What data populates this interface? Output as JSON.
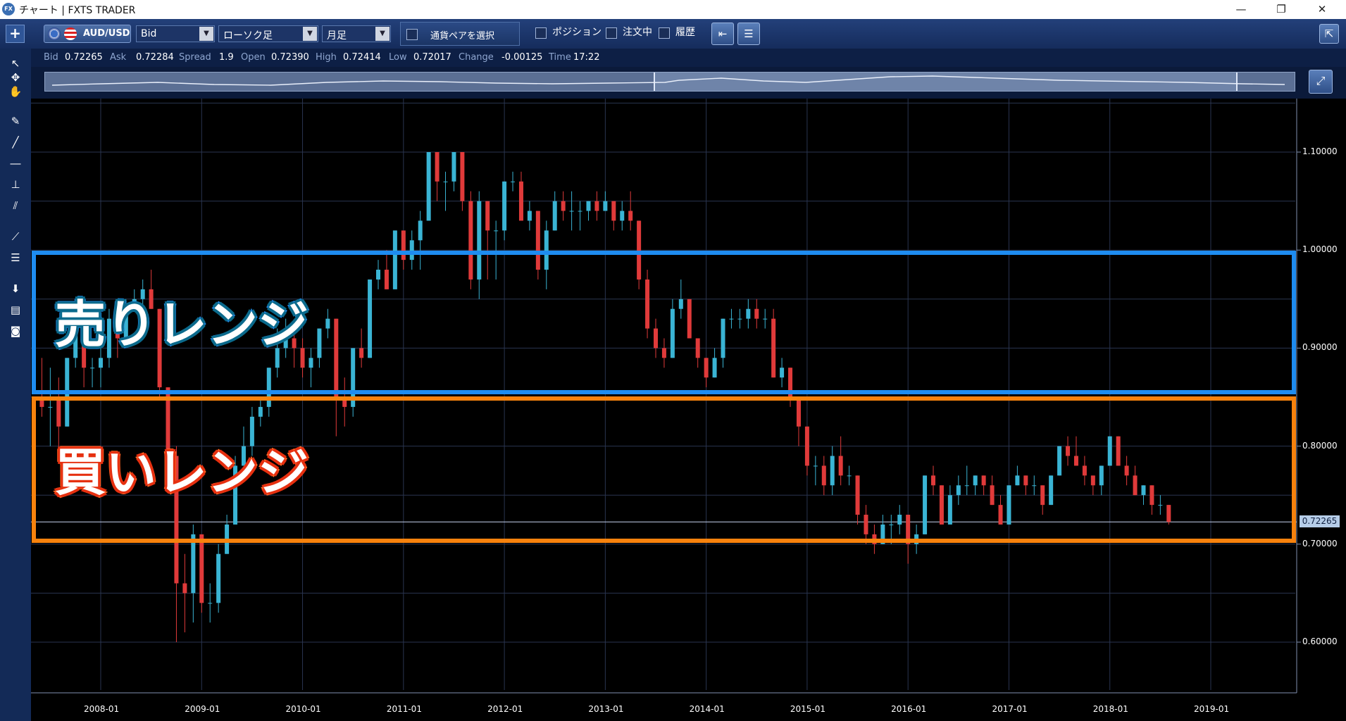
{
  "window": {
    "title": "チャート | FXTS TRADER",
    "app_icon_text": "FX"
  },
  "toolbar": {
    "plus_label": "+",
    "pair": "AUD/USD",
    "price_type": "Bid",
    "chart_type": "ローソク足",
    "timeframe": "月足",
    "pair_select_label": "通貨ペアを選択",
    "checkboxes": [
      {
        "label": "ポジション",
        "checked": false
      },
      {
        "label": "注文中",
        "checked": false
      },
      {
        "label": "履歴",
        "checked": false
      }
    ]
  },
  "info": {
    "bid_label": "Bid",
    "bid": "0.72265",
    "ask_label": "Ask",
    "ask": "0.72284",
    "spread_label": "Spread",
    "spread": "1.9",
    "open_label": "Open",
    "open": "0.72390",
    "high_label": "High",
    "high": "0.72414",
    "low_label": "Low",
    "low": "0.72017",
    "change_label": "Change",
    "change": "-0.00125",
    "time_label": "Time",
    "time": "17:22"
  },
  "annotations": {
    "sell_range": "売りレンジ",
    "buy_range": "買いレンジ"
  },
  "colors": {
    "up": "#3ab4d4",
    "down": "#e03a3a",
    "sell_box": "#1e8cf0",
    "buy_box": "#f7820d"
  },
  "chart_data": {
    "type": "candlestick",
    "current_price": "0.72265",
    "y_ticks": [
      "1.10000",
      "1.00000",
      "0.90000",
      "0.80000",
      "0.70000",
      "0.60000"
    ],
    "y_values": [
      1.1,
      1.0,
      0.9,
      0.8,
      0.7,
      0.6
    ],
    "ylim": [
      0.55,
      1.15
    ],
    "x_ticks": [
      "2008-01",
      "2009-01",
      "2010-01",
      "2011-01",
      "2012-01",
      "2013-01",
      "2014-01",
      "2015-01",
      "2016-01",
      "2017-01",
      "2018-01",
      "2019-01"
    ],
    "candles": [
      {
        "t": "2007-06",
        "o": 0.85,
        "h": 0.89,
        "l": 0.83,
        "c": 0.84
      },
      {
        "t": "2007-07",
        "o": 0.84,
        "h": 0.88,
        "l": 0.8,
        "c": 0.84
      },
      {
        "t": "2007-08",
        "o": 0.85,
        "h": 0.87,
        "l": 0.79,
        "c": 0.82
      },
      {
        "t": "2007-09",
        "o": 0.82,
        "h": 0.89,
        "l": 0.82,
        "c": 0.89
      },
      {
        "t": "2007-10",
        "o": 0.89,
        "h": 0.93,
        "l": 0.88,
        "c": 0.92
      },
      {
        "t": "2007-11",
        "o": 0.92,
        "h": 0.93,
        "l": 0.86,
        "c": 0.88
      },
      {
        "t": "2007-12",
        "o": 0.88,
        "h": 0.89,
        "l": 0.86,
        "c": 0.88
      },
      {
        "t": "2008-01",
        "o": 0.88,
        "h": 0.9,
        "l": 0.86,
        "c": 0.89
      },
      {
        "t": "2008-02",
        "o": 0.89,
        "h": 0.94,
        "l": 0.88,
        "c": 0.93
      },
      {
        "t": "2008-03",
        "o": 0.93,
        "h": 0.94,
        "l": 0.89,
        "c": 0.91
      },
      {
        "t": "2008-04",
        "o": 0.91,
        "h": 0.95,
        "l": 0.91,
        "c": 0.94
      },
      {
        "t": "2008-05",
        "o": 0.94,
        "h": 0.96,
        "l": 0.94,
        "c": 0.95
      },
      {
        "t": "2008-06",
        "o": 0.95,
        "h": 0.97,
        "l": 0.94,
        "c": 0.96
      },
      {
        "t": "2008-07",
        "o": 0.96,
        "h": 0.98,
        "l": 0.94,
        "c": 0.94
      },
      {
        "t": "2008-08",
        "o": 0.94,
        "h": 0.94,
        "l": 0.85,
        "c": 0.86
      },
      {
        "t": "2008-09",
        "o": 0.86,
        "h": 0.86,
        "l": 0.78,
        "c": 0.79
      },
      {
        "t": "2008-10",
        "o": 0.79,
        "h": 0.8,
        "l": 0.6,
        "c": 0.66
      },
      {
        "t": "2008-11",
        "o": 0.66,
        "h": 0.69,
        "l": 0.61,
        "c": 0.65
      },
      {
        "t": "2008-12",
        "o": 0.65,
        "h": 0.72,
        "l": 0.62,
        "c": 0.71
      },
      {
        "t": "2009-01",
        "o": 0.71,
        "h": 0.71,
        "l": 0.63,
        "c": 0.64
      },
      {
        "t": "2009-02",
        "o": 0.64,
        "h": 0.66,
        "l": 0.62,
        "c": 0.64
      },
      {
        "t": "2009-03",
        "o": 0.64,
        "h": 0.7,
        "l": 0.63,
        "c": 0.69
      },
      {
        "t": "2009-04",
        "o": 0.69,
        "h": 0.73,
        "l": 0.69,
        "c": 0.72
      },
      {
        "t": "2009-05",
        "o": 0.72,
        "h": 0.79,
        "l": 0.72,
        "c": 0.78
      },
      {
        "t": "2009-06",
        "o": 0.78,
        "h": 0.82,
        "l": 0.78,
        "c": 0.8
      },
      {
        "t": "2009-07",
        "o": 0.8,
        "h": 0.84,
        "l": 0.79,
        "c": 0.83
      },
      {
        "t": "2009-08",
        "o": 0.83,
        "h": 0.85,
        "l": 0.82,
        "c": 0.84
      },
      {
        "t": "2009-09",
        "o": 0.84,
        "h": 0.88,
        "l": 0.83,
        "c": 0.88
      },
      {
        "t": "2009-10",
        "o": 0.88,
        "h": 0.92,
        "l": 0.87,
        "c": 0.9
      },
      {
        "t": "2009-11",
        "o": 0.9,
        "h": 0.93,
        "l": 0.89,
        "c": 0.91
      },
      {
        "t": "2009-12",
        "o": 0.91,
        "h": 0.92,
        "l": 0.88,
        "c": 0.9
      },
      {
        "t": "2010-01",
        "o": 0.9,
        "h": 0.91,
        "l": 0.87,
        "c": 0.88
      },
      {
        "t": "2010-02",
        "o": 0.88,
        "h": 0.9,
        "l": 0.86,
        "c": 0.89
      },
      {
        "t": "2010-03",
        "o": 0.89,
        "h": 0.92,
        "l": 0.88,
        "c": 0.92
      },
      {
        "t": "2010-04",
        "o": 0.92,
        "h": 0.94,
        "l": 0.91,
        "c": 0.93
      },
      {
        "t": "2010-05",
        "o": 0.93,
        "h": 0.93,
        "l": 0.81,
        "c": 0.85
      },
      {
        "t": "2010-06",
        "o": 0.85,
        "h": 0.87,
        "l": 0.82,
        "c": 0.84
      },
      {
        "t": "2010-07",
        "o": 0.84,
        "h": 0.9,
        "l": 0.83,
        "c": 0.9
      },
      {
        "t": "2010-08",
        "o": 0.9,
        "h": 0.92,
        "l": 0.88,
        "c": 0.89
      },
      {
        "t": "2010-09",
        "o": 0.89,
        "h": 0.97,
        "l": 0.89,
        "c": 0.97
      },
      {
        "t": "2010-10",
        "o": 0.97,
        "h": 0.99,
        "l": 0.96,
        "c": 0.98
      },
      {
        "t": "2010-11",
        "o": 0.98,
        "h": 1.0,
        "l": 0.96,
        "c": 0.96
      },
      {
        "t": "2010-12",
        "o": 0.96,
        "h": 1.02,
        "l": 0.96,
        "c": 1.02
      },
      {
        "t": "2011-01",
        "o": 1.02,
        "h": 1.02,
        "l": 0.98,
        "c": 0.99
      },
      {
        "t": "2011-02",
        "o": 0.99,
        "h": 1.02,
        "l": 0.98,
        "c": 1.01
      },
      {
        "t": "2011-03",
        "o": 1.01,
        "h": 1.04,
        "l": 0.98,
        "c": 1.03
      },
      {
        "t": "2011-04",
        "o": 1.03,
        "h": 1.1,
        "l": 1.03,
        "c": 1.1
      },
      {
        "t": "2011-05",
        "o": 1.1,
        "h": 1.1,
        "l": 1.05,
        "c": 1.07
      },
      {
        "t": "2011-06",
        "o": 1.07,
        "h": 1.08,
        "l": 1.04,
        "c": 1.07
      },
      {
        "t": "2011-07",
        "o": 1.07,
        "h": 1.1,
        "l": 1.06,
        "c": 1.1
      },
      {
        "t": "2011-08",
        "o": 1.1,
        "h": 1.1,
        "l": 1.04,
        "c": 1.05
      },
      {
        "t": "2011-09",
        "o": 1.05,
        "h": 1.06,
        "l": 0.96,
        "c": 0.97
      },
      {
        "t": "2011-10",
        "o": 0.97,
        "h": 1.06,
        "l": 0.95,
        "c": 1.05
      },
      {
        "t": "2011-11",
        "o": 1.05,
        "h": 1.05,
        "l": 0.97,
        "c": 1.02
      },
      {
        "t": "2011-12",
        "o": 1.02,
        "h": 1.03,
        "l": 0.97,
        "c": 1.02
      },
      {
        "t": "2012-01",
        "o": 1.02,
        "h": 1.07,
        "l": 1.01,
        "c": 1.07
      },
      {
        "t": "2012-02",
        "o": 1.07,
        "h": 1.08,
        "l": 1.06,
        "c": 1.07
      },
      {
        "t": "2012-03",
        "o": 1.07,
        "h": 1.08,
        "l": 1.03,
        "c": 1.03
      },
      {
        "t": "2012-04",
        "o": 1.03,
        "h": 1.05,
        "l": 1.02,
        "c": 1.04
      },
      {
        "t": "2012-05",
        "o": 1.04,
        "h": 1.04,
        "l": 0.97,
        "c": 0.98
      },
      {
        "t": "2012-06",
        "o": 0.98,
        "h": 1.03,
        "l": 0.96,
        "c": 1.02
      },
      {
        "t": "2012-07",
        "o": 1.02,
        "h": 1.06,
        "l": 1.02,
        "c": 1.05
      },
      {
        "t": "2012-08",
        "o": 1.05,
        "h": 1.06,
        "l": 1.03,
        "c": 1.04
      },
      {
        "t": "2012-09",
        "o": 1.04,
        "h": 1.06,
        "l": 1.02,
        "c": 1.04
      },
      {
        "t": "2012-10",
        "o": 1.04,
        "h": 1.05,
        "l": 1.02,
        "c": 1.04
      },
      {
        "t": "2012-11",
        "o": 1.04,
        "h": 1.05,
        "l": 1.03,
        "c": 1.05
      },
      {
        "t": "2012-12",
        "o": 1.05,
        "h": 1.06,
        "l": 1.03,
        "c": 1.04
      },
      {
        "t": "2013-01",
        "o": 1.04,
        "h": 1.06,
        "l": 1.04,
        "c": 1.05
      },
      {
        "t": "2013-02",
        "o": 1.05,
        "h": 1.05,
        "l": 1.02,
        "c": 1.03
      },
      {
        "t": "2013-03",
        "o": 1.03,
        "h": 1.05,
        "l": 1.02,
        "c": 1.04
      },
      {
        "t": "2013-04",
        "o": 1.04,
        "h": 1.06,
        "l": 1.02,
        "c": 1.03
      },
      {
        "t": "2013-05",
        "o": 1.03,
        "h": 1.03,
        "l": 0.96,
        "c": 0.97
      },
      {
        "t": "2013-06",
        "o": 0.97,
        "h": 0.98,
        "l": 0.91,
        "c": 0.92
      },
      {
        "t": "2013-07",
        "o": 0.92,
        "h": 0.93,
        "l": 0.89,
        "c": 0.9
      },
      {
        "t": "2013-08",
        "o": 0.9,
        "h": 0.91,
        "l": 0.88,
        "c": 0.89
      },
      {
        "t": "2013-09",
        "o": 0.89,
        "h": 0.95,
        "l": 0.89,
        "c": 0.94
      },
      {
        "t": "2013-10",
        "o": 0.94,
        "h": 0.97,
        "l": 0.93,
        "c": 0.95
      },
      {
        "t": "2013-11",
        "o": 0.95,
        "h": 0.95,
        "l": 0.91,
        "c": 0.91
      },
      {
        "t": "2013-12",
        "o": 0.91,
        "h": 0.91,
        "l": 0.88,
        "c": 0.89
      },
      {
        "t": "2014-01",
        "o": 0.89,
        "h": 0.89,
        "l": 0.86,
        "c": 0.87
      },
      {
        "t": "2014-02",
        "o": 0.87,
        "h": 0.9,
        "l": 0.87,
        "c": 0.89
      },
      {
        "t": "2014-03",
        "o": 0.89,
        "h": 0.93,
        "l": 0.88,
        "c": 0.93
      },
      {
        "t": "2014-04",
        "o": 0.93,
        "h": 0.94,
        "l": 0.92,
        "c": 0.93
      },
      {
        "t": "2014-05",
        "o": 0.93,
        "h": 0.94,
        "l": 0.92,
        "c": 0.93
      },
      {
        "t": "2014-06",
        "o": 0.93,
        "h": 0.95,
        "l": 0.92,
        "c": 0.94
      },
      {
        "t": "2014-07",
        "o": 0.94,
        "h": 0.95,
        "l": 0.92,
        "c": 0.93
      },
      {
        "t": "2014-08",
        "o": 0.93,
        "h": 0.94,
        "l": 0.92,
        "c": 0.93
      },
      {
        "t": "2014-09",
        "o": 0.93,
        "h": 0.94,
        "l": 0.87,
        "c": 0.87
      },
      {
        "t": "2014-10",
        "o": 0.87,
        "h": 0.89,
        "l": 0.86,
        "c": 0.88
      },
      {
        "t": "2014-11",
        "o": 0.88,
        "h": 0.88,
        "l": 0.84,
        "c": 0.85
      },
      {
        "t": "2014-12",
        "o": 0.85,
        "h": 0.85,
        "l": 0.8,
        "c": 0.82
      },
      {
        "t": "2015-01",
        "o": 0.82,
        "h": 0.82,
        "l": 0.77,
        "c": 0.78
      },
      {
        "t": "2015-02",
        "o": 0.78,
        "h": 0.79,
        "l": 0.76,
        "c": 0.78
      },
      {
        "t": "2015-03",
        "o": 0.78,
        "h": 0.79,
        "l": 0.75,
        "c": 0.76
      },
      {
        "t": "2015-04",
        "o": 0.76,
        "h": 0.8,
        "l": 0.75,
        "c": 0.79
      },
      {
        "t": "2015-05",
        "o": 0.79,
        "h": 0.81,
        "l": 0.76,
        "c": 0.77
      },
      {
        "t": "2015-06",
        "o": 0.77,
        "h": 0.78,
        "l": 0.76,
        "c": 0.77
      },
      {
        "t": "2015-07",
        "o": 0.77,
        "h": 0.77,
        "l": 0.72,
        "c": 0.73
      },
      {
        "t": "2015-08",
        "o": 0.73,
        "h": 0.74,
        "l": 0.7,
        "c": 0.71
      },
      {
        "t": "2015-09",
        "o": 0.71,
        "h": 0.72,
        "l": 0.69,
        "c": 0.7
      },
      {
        "t": "2015-10",
        "o": 0.7,
        "h": 0.73,
        "l": 0.7,
        "c": 0.72
      },
      {
        "t": "2015-11",
        "o": 0.72,
        "h": 0.73,
        "l": 0.7,
        "c": 0.72
      },
      {
        "t": "2015-12",
        "o": 0.72,
        "h": 0.74,
        "l": 0.71,
        "c": 0.73
      },
      {
        "t": "2016-01",
        "o": 0.73,
        "h": 0.73,
        "l": 0.68,
        "c": 0.7
      },
      {
        "t": "2016-02",
        "o": 0.7,
        "h": 0.72,
        "l": 0.69,
        "c": 0.71
      },
      {
        "t": "2016-03",
        "o": 0.71,
        "h": 0.77,
        "l": 0.71,
        "c": 0.77
      },
      {
        "t": "2016-04",
        "o": 0.77,
        "h": 0.78,
        "l": 0.75,
        "c": 0.76
      },
      {
        "t": "2016-05",
        "o": 0.76,
        "h": 0.76,
        "l": 0.72,
        "c": 0.72
      },
      {
        "t": "2016-06",
        "o": 0.72,
        "h": 0.76,
        "l": 0.72,
        "c": 0.75
      },
      {
        "t": "2016-07",
        "o": 0.75,
        "h": 0.77,
        "l": 0.74,
        "c": 0.76
      },
      {
        "t": "2016-08",
        "o": 0.76,
        "h": 0.78,
        "l": 0.75,
        "c": 0.76
      },
      {
        "t": "2016-09",
        "o": 0.76,
        "h": 0.77,
        "l": 0.75,
        "c": 0.77
      },
      {
        "t": "2016-10",
        "o": 0.77,
        "h": 0.77,
        "l": 0.75,
        "c": 0.76
      },
      {
        "t": "2016-11",
        "o": 0.76,
        "h": 0.77,
        "l": 0.74,
        "c": 0.74
      },
      {
        "t": "2016-12",
        "o": 0.74,
        "h": 0.75,
        "l": 0.72,
        "c": 0.72
      },
      {
        "t": "2017-01",
        "o": 0.72,
        "h": 0.76,
        "l": 0.72,
        "c": 0.76
      },
      {
        "t": "2017-02",
        "o": 0.76,
        "h": 0.78,
        "l": 0.76,
        "c": 0.77
      },
      {
        "t": "2017-03",
        "o": 0.77,
        "h": 0.77,
        "l": 0.75,
        "c": 0.76
      },
      {
        "t": "2017-04",
        "o": 0.76,
        "h": 0.77,
        "l": 0.75,
        "c": 0.76
      },
      {
        "t": "2017-05",
        "o": 0.76,
        "h": 0.76,
        "l": 0.73,
        "c": 0.74
      },
      {
        "t": "2017-06",
        "o": 0.74,
        "h": 0.77,
        "l": 0.74,
        "c": 0.77
      },
      {
        "t": "2017-07",
        "o": 0.77,
        "h": 0.8,
        "l": 0.77,
        "c": 0.8
      },
      {
        "t": "2017-08",
        "o": 0.8,
        "h": 0.81,
        "l": 0.78,
        "c": 0.79
      },
      {
        "t": "2017-09",
        "o": 0.79,
        "h": 0.81,
        "l": 0.78,
        "c": 0.78
      },
      {
        "t": "2017-10",
        "o": 0.78,
        "h": 0.79,
        "l": 0.76,
        "c": 0.77
      },
      {
        "t": "2017-11",
        "o": 0.77,
        "h": 0.77,
        "l": 0.75,
        "c": 0.76
      },
      {
        "t": "2017-12",
        "o": 0.76,
        "h": 0.78,
        "l": 0.75,
        "c": 0.78
      },
      {
        "t": "2018-01",
        "o": 0.78,
        "h": 0.81,
        "l": 0.78,
        "c": 0.81
      },
      {
        "t": "2018-02",
        "o": 0.81,
        "h": 0.81,
        "l": 0.78,
        "c": 0.78
      },
      {
        "t": "2018-03",
        "o": 0.78,
        "h": 0.79,
        "l": 0.76,
        "c": 0.77
      },
      {
        "t": "2018-04",
        "o": 0.77,
        "h": 0.78,
        "l": 0.75,
        "c": 0.75
      },
      {
        "t": "2018-05",
        "o": 0.75,
        "h": 0.76,
        "l": 0.74,
        "c": 0.76
      },
      {
        "t": "2018-06",
        "o": 0.76,
        "h": 0.76,
        "l": 0.73,
        "c": 0.74
      },
      {
        "t": "2018-07",
        "o": 0.74,
        "h": 0.75,
        "l": 0.73,
        "c": 0.74
      },
      {
        "t": "2018-08",
        "o": 0.74,
        "h": 0.74,
        "l": 0.72,
        "c": 0.72265
      }
    ]
  }
}
